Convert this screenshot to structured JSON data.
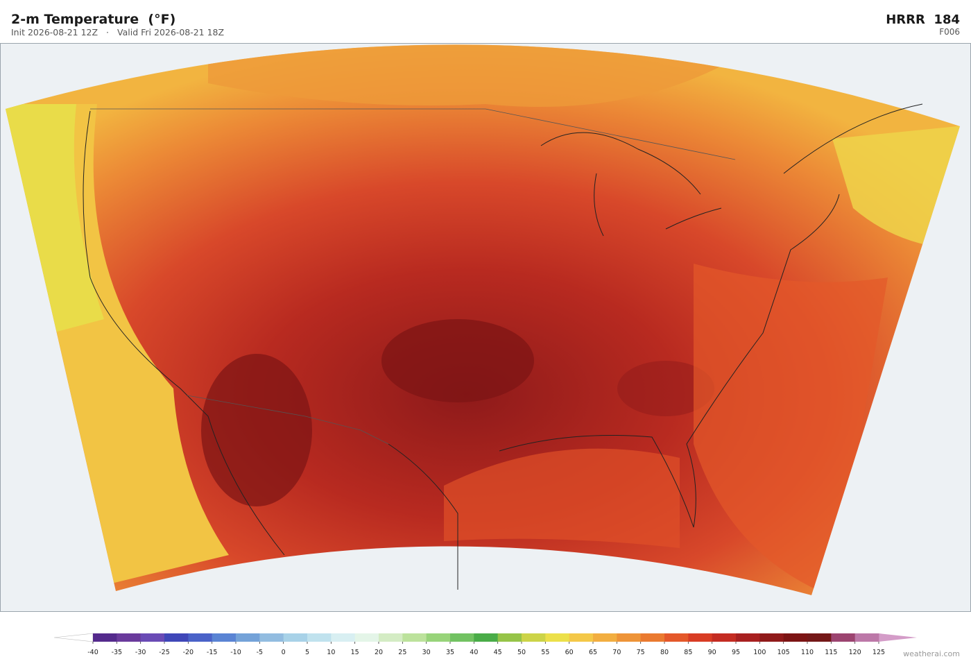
{
  "header": {
    "title": "2-m Temperature  (°F)",
    "init": "Init 2026-08-21 12Z",
    "separator": "·",
    "valid": "Valid Fri 2026-08-21 18Z",
    "model": "HRRR  184",
    "forecast_hour": "F006"
  },
  "colorbar": {
    "ticks": [
      -40,
      -35,
      -30,
      -25,
      -20,
      -15,
      -10,
      -5,
      0,
      5,
      10,
      15,
      20,
      25,
      30,
      35,
      40,
      45,
      50,
      55,
      60,
      65,
      70,
      75,
      80,
      85,
      90,
      95,
      100,
      105,
      110,
      115,
      120,
      125
    ],
    "colors": [
      "#542a8c",
      "#6a3a9c",
      "#6a4bb5",
      "#3f47b8",
      "#4a62c8",
      "#5a84d4",
      "#74a2d8",
      "#92bce0",
      "#a8d2e8",
      "#c0e2ee",
      "#d8eff2",
      "#e4f5e8",
      "#d4ecc4",
      "#bce29c",
      "#98d47a",
      "#72c262",
      "#4aac48",
      "#96c448",
      "#ccd448",
      "#ece04a",
      "#f4c848",
      "#f2ae40",
      "#ee9438",
      "#ea7a30",
      "#e4582a",
      "#d83c24",
      "#c42c22",
      "#a82020",
      "#901a1a",
      "#7c1414",
      "#741818",
      "#9c4470",
      "#bc78a8"
    ],
    "under_color": "#ffffff",
    "over_color": "#d49cc8",
    "credit": "weatherai.com"
  }
}
